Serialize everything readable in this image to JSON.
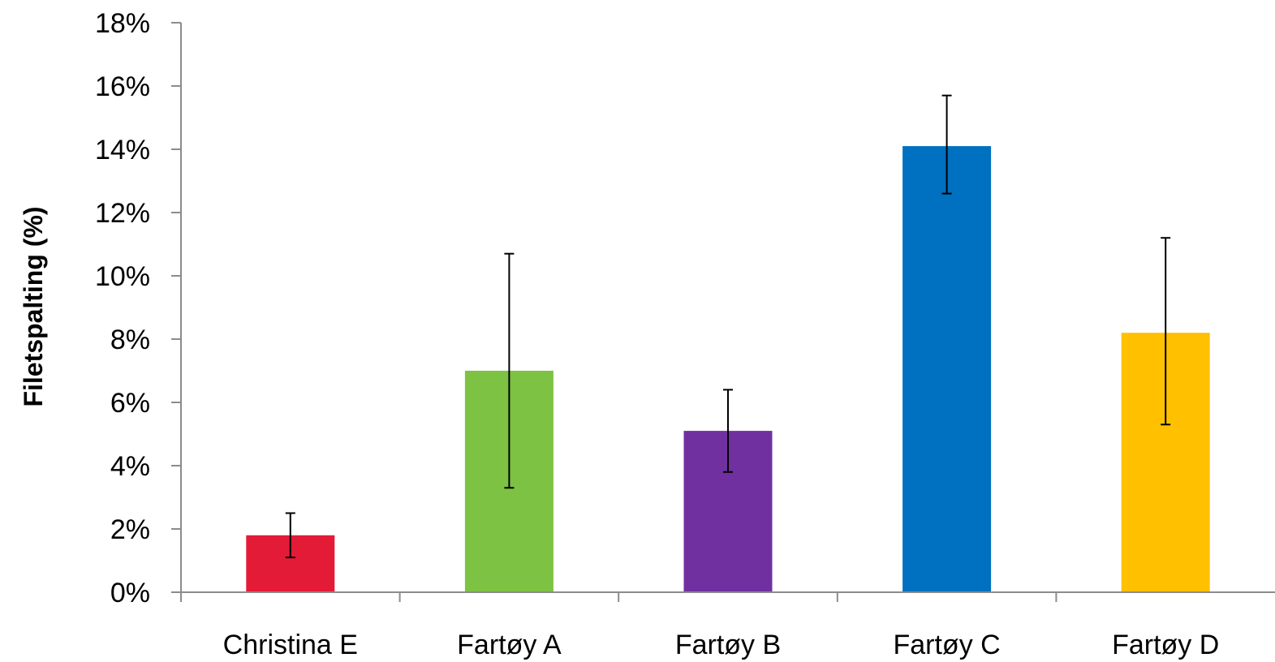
{
  "chart_data": {
    "type": "bar",
    "categories": [
      "Christina E",
      "Fartøy A",
      "Fartøy B",
      "Fartøy C",
      "Fartøy D"
    ],
    "values": [
      0.018,
      0.07,
      0.051,
      0.141,
      0.082
    ],
    "error_low": [
      0.011,
      0.033,
      0.038,
      0.126,
      0.053
    ],
    "error_high": [
      0.025,
      0.107,
      0.064,
      0.157,
      0.112
    ],
    "colors": [
      "#e31b37",
      "#7dc242",
      "#7030a0",
      "#0070c0",
      "#ffc000"
    ],
    "title": "",
    "xlabel": "",
    "ylabel": "Filetspalting (%)",
    "ylim": [
      0,
      0.18
    ],
    "yticks": [
      0,
      0.02,
      0.04,
      0.06,
      0.08,
      0.1,
      0.12,
      0.14,
      0.16,
      0.18
    ],
    "ytick_labels": [
      "0%",
      "2%",
      "4%",
      "6%",
      "8%",
      "10%",
      "12%",
      "14%",
      "16%",
      "18%"
    ],
    "grid": false,
    "legend": "none"
  }
}
